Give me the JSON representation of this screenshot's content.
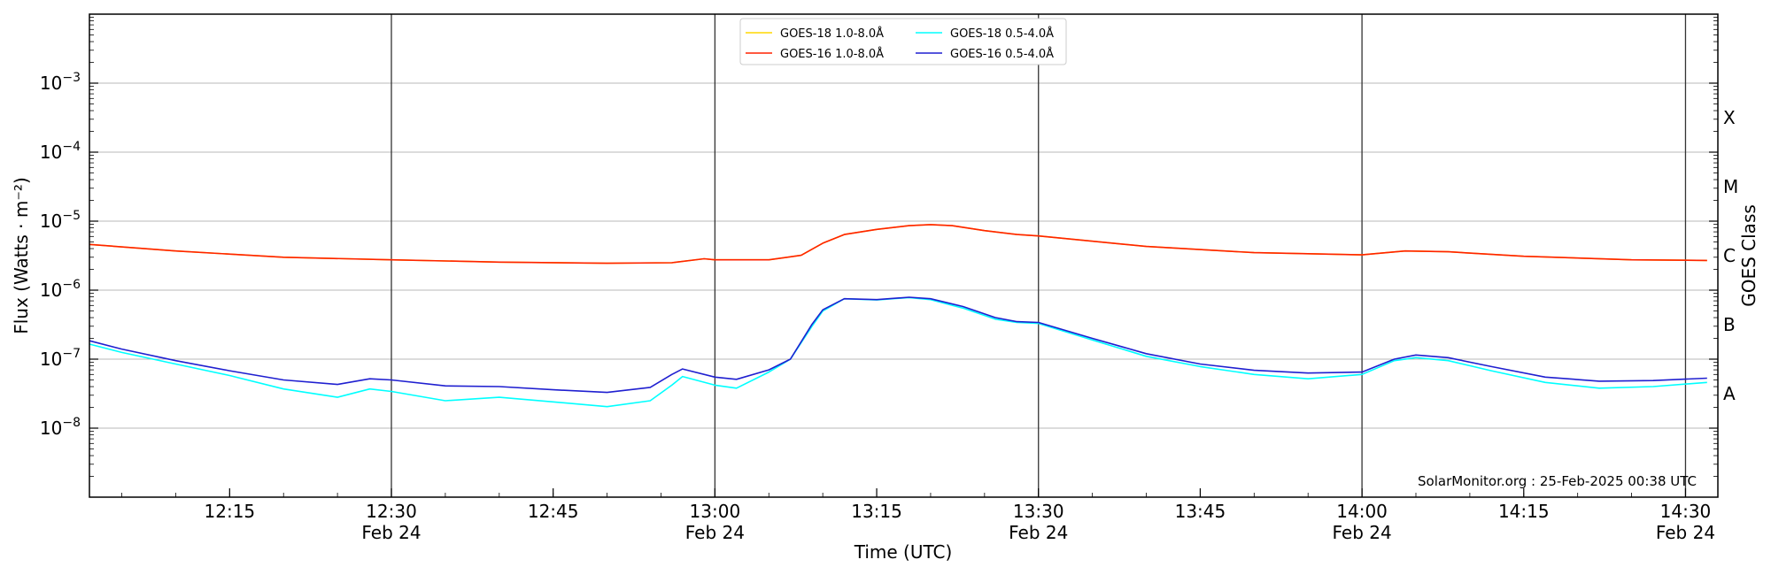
{
  "chart_data": {
    "type": "line",
    "title": "",
    "xlabel": "Time (UTC)",
    "ylabel": "Flux (Watts · m⁻²)",
    "right_label": "GOES Class",
    "y_scale": "log",
    "ylim": [
      1e-09,
      0.01
    ],
    "xlim": [
      "2025-02-24 12:02",
      "2025-02-24 14:33"
    ],
    "grid": "horizontal",
    "legend_position": "top-center",
    "credit": "SolarMonitor.org : 25-Feb-2025 00:38 UTC",
    "y_ticks": [
      {
        "value": 0.001,
        "base": "10",
        "exp": "−3"
      },
      {
        "value": 0.0001,
        "base": "10",
        "exp": "−4"
      },
      {
        "value": 1e-05,
        "base": "10",
        "exp": "−5"
      },
      {
        "value": 1e-06,
        "base": "10",
        "exp": "−6"
      },
      {
        "value": 1e-07,
        "base": "10",
        "exp": "−7"
      },
      {
        "value": 1e-08,
        "base": "10",
        "exp": "−8"
      }
    ],
    "class_labels": [
      {
        "label": "X",
        "value": 0.000316
      },
      {
        "label": "M",
        "value": 3.16e-05
      },
      {
        "label": "C",
        "value": 3.16e-06
      },
      {
        "label": "B",
        "value": 3.16e-07
      },
      {
        "label": "A",
        "value": 3.16e-08
      }
    ],
    "x_ticks": [
      {
        "time": "2025-02-24 12:15",
        "label": "12:15",
        "date": "",
        "vline": false
      },
      {
        "time": "2025-02-24 12:30",
        "label": "12:30",
        "date": "Feb 24",
        "vline": true
      },
      {
        "time": "2025-02-24 12:45",
        "label": "12:45",
        "date": "",
        "vline": false
      },
      {
        "time": "2025-02-24 13:00",
        "label": "13:00",
        "date": "Feb 24",
        "vline": true
      },
      {
        "time": "2025-02-24 13:15",
        "label": "13:15",
        "date": "",
        "vline": false
      },
      {
        "time": "2025-02-24 13:30",
        "label": "13:30",
        "date": "Feb 24",
        "vline": true
      },
      {
        "time": "2025-02-24 13:45",
        "label": "13:45",
        "date": "",
        "vline": false
      },
      {
        "time": "2025-02-24 14:00",
        "label": "14:00",
        "date": "Feb 24",
        "vline": true
      },
      {
        "time": "2025-02-24 14:15",
        "label": "14:15",
        "date": "",
        "vline": false
      },
      {
        "time": "2025-02-24 14:30",
        "label": "14:30",
        "date": "Feb 24",
        "vline": true
      }
    ],
    "series": [
      {
        "name": "GOES-18 1.0-8.0Å",
        "color": "#ffd700",
        "x": [
          "12:02",
          "12:10",
          "12:20",
          "12:30",
          "12:40",
          "12:50",
          "12:56",
          "12:59",
          "13:00",
          "13:05",
          "13:08",
          "13:10",
          "13:12",
          "13:15",
          "13:18",
          "13:20",
          "13:22",
          "13:25",
          "13:28",
          "13:30",
          "13:40",
          "13:50",
          "14:00",
          "14:04",
          "14:08",
          "14:15",
          "14:25",
          "14:32"
        ],
        "y": [
          4.6e-06,
          3.7e-06,
          3e-06,
          2.75e-06,
          2.55e-06,
          2.45e-06,
          2.5e-06,
          2.85e-06,
          2.75e-06,
          2.75e-06,
          3.2e-06,
          4.8e-06,
          6.4e-06,
          7.6e-06,
          8.6e-06,
          8.9e-06,
          8.6e-06,
          7.3e-06,
          6.4e-06,
          6.1e-06,
          4.3e-06,
          3.5e-06,
          3.25e-06,
          3.7e-06,
          3.6e-06,
          3.1e-06,
          2.75e-06,
          2.7e-06
        ]
      },
      {
        "name": "GOES-16 1.0-8.0Å",
        "color": "#ff2200",
        "x": [
          "12:02",
          "12:10",
          "12:20",
          "12:30",
          "12:40",
          "12:50",
          "12:56",
          "12:59",
          "13:00",
          "13:05",
          "13:08",
          "13:10",
          "13:12",
          "13:15",
          "13:18",
          "13:20",
          "13:22",
          "13:25",
          "13:28",
          "13:30",
          "13:40",
          "13:50",
          "14:00",
          "14:04",
          "14:08",
          "14:15",
          "14:25",
          "14:32"
        ],
        "y": [
          4.6e-06,
          3.7e-06,
          3e-06,
          2.75e-06,
          2.55e-06,
          2.45e-06,
          2.5e-06,
          2.85e-06,
          2.75e-06,
          2.75e-06,
          3.2e-06,
          4.8e-06,
          6.4e-06,
          7.6e-06,
          8.6e-06,
          8.9e-06,
          8.6e-06,
          7.3e-06,
          6.4e-06,
          6.1e-06,
          4.3e-06,
          3.5e-06,
          3.25e-06,
          3.7e-06,
          3.6e-06,
          3.1e-06,
          2.75e-06,
          2.7e-06
        ]
      },
      {
        "name": "GOES-18 0.5-4.0Å",
        "color": "#00ffff",
        "x": [
          "12:02",
          "12:05",
          "12:10",
          "12:15",
          "12:20",
          "12:25",
          "12:28",
          "12:30",
          "12:35",
          "12:40",
          "12:45",
          "12:50",
          "12:54",
          "12:56",
          "12:57",
          "13:00",
          "13:02",
          "13:05",
          "13:07",
          "13:09",
          "13:10",
          "13:12",
          "13:15",
          "13:18",
          "13:20",
          "13:23",
          "13:26",
          "13:28",
          "13:30",
          "13:35",
          "13:40",
          "13:45",
          "13:50",
          "13:55",
          "14:00",
          "14:03",
          "14:05",
          "14:08",
          "14:12",
          "14:17",
          "14:22",
          "14:27",
          "14:32"
        ],
        "y": [
          1.65e-07,
          1.25e-07,
          8.5e-08,
          5.8e-08,
          3.7e-08,
          2.8e-08,
          3.7e-08,
          3.4e-08,
          2.5e-08,
          2.8e-08,
          2.4e-08,
          2.05e-08,
          2.5e-08,
          4.2e-08,
          5.6e-08,
          4.2e-08,
          3.8e-08,
          6.5e-08,
          1e-07,
          3e-07,
          5e-07,
          7.5e-07,
          7.2e-07,
          7.8e-07,
          7.3e-07,
          5.5e-07,
          3.8e-07,
          3.4e-07,
          3.3e-07,
          1.9e-07,
          1.1e-07,
          7.8e-08,
          6e-08,
          5.2e-08,
          6e-08,
          9.5e-08,
          1.05e-07,
          9.5e-08,
          6.8e-08,
          4.6e-08,
          3.8e-08,
          4e-08,
          4.6e-08
        ]
      },
      {
        "name": "GOES-16 0.5-4.0Å",
        "color": "#1f1fd0",
        "x": [
          "12:02",
          "12:05",
          "12:10",
          "12:15",
          "12:20",
          "12:25",
          "12:28",
          "12:30",
          "12:35",
          "12:40",
          "12:45",
          "12:50",
          "12:54",
          "12:56",
          "12:57",
          "13:00",
          "13:02",
          "13:05",
          "13:07",
          "13:09",
          "13:10",
          "13:12",
          "13:15",
          "13:18",
          "13:20",
          "13:23",
          "13:26",
          "13:28",
          "13:30",
          "13:35",
          "13:40",
          "13:45",
          "13:50",
          "13:55",
          "14:00",
          "14:03",
          "14:05",
          "14:08",
          "14:12",
          "14:17",
          "14:22",
          "14:27",
          "14:32"
        ],
        "y": [
          1.85e-07,
          1.4e-07,
          9.5e-08,
          6.8e-08,
          5e-08,
          4.3e-08,
          5.2e-08,
          5e-08,
          4.1e-08,
          4e-08,
          3.6e-08,
          3.3e-08,
          3.9e-08,
          6e-08,
          7.2e-08,
          5.5e-08,
          5.1e-08,
          7e-08,
          1e-07,
          3.2e-07,
          5.2e-07,
          7.5e-07,
          7.3e-07,
          7.9e-07,
          7.5e-07,
          5.8e-07,
          4e-07,
          3.5e-07,
          3.4e-07,
          2e-07,
          1.2e-07,
          8.5e-08,
          6.9e-08,
          6.3e-08,
          6.5e-08,
          1e-07,
          1.15e-07,
          1.05e-07,
          7.8e-08,
          5.5e-08,
          4.8e-08,
          4.9e-08,
          5.3e-08
        ]
      }
    ]
  }
}
